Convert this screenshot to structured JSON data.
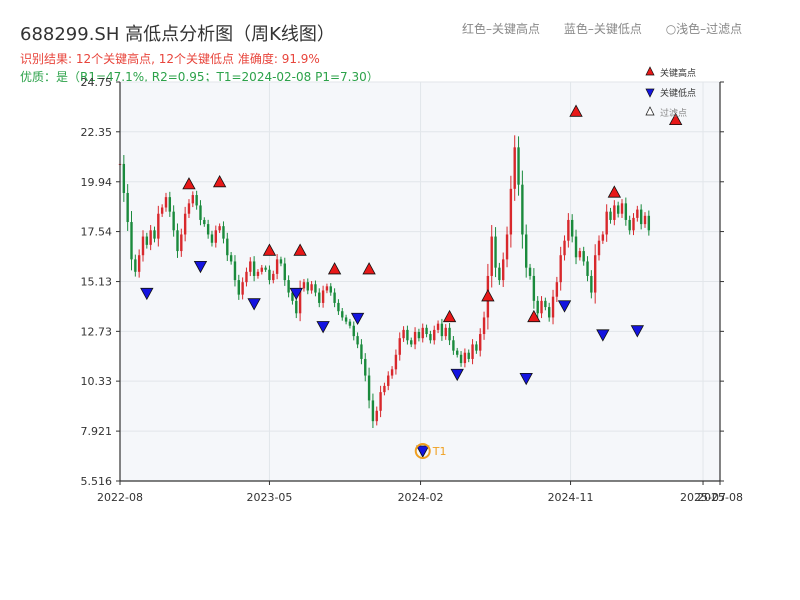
{
  "header": {
    "title": "688299.SH 高低点分析图（周K线图）",
    "result_line": "识别结果: 12个关键高点, 12个关键低点  准确度: 91.9%",
    "quality_line": "优质：是（R1=47.1%, R2=0.95；T1=2024-02-08 P1=7.30）",
    "legend_red": "红色–关键高点",
    "legend_blue": "蓝色–关键低点",
    "legend_gray": "○浅色–过滤点"
  },
  "colors": {
    "up": "#d8282c",
    "down": "#1a8a3c",
    "high_marker": "#e81818",
    "low_marker": "#1414e0",
    "t1": "#f0a020",
    "axis": "#333333",
    "plot_bg": "#f5f7fa",
    "grid": "#e2e6ea"
  },
  "chart_data": {
    "type": "candlestick",
    "xlabel": "",
    "ylabel": "",
    "y_ticks": [
      "5.516",
      "7.921",
      "10.33",
      "12.73",
      "15.13",
      "17.54",
      "19.94",
      "22.35",
      "24.75"
    ],
    "x_ticks": [
      {
        "label": "2022-08",
        "date": "2022-08-01"
      },
      {
        "label": "2023-05",
        "date": "2023-05-01"
      },
      {
        "label": "2024-02",
        "date": "2024-02-01"
      },
      {
        "label": "2024-11",
        "date": "2024-11-01"
      },
      {
        "label": "2025-07",
        "date": "2025-07-01"
      },
      {
        "label": "2025-08",
        "date": "2025-08-01"
      }
    ],
    "ylim": [
      5.516,
      24.75
    ],
    "xlim": [
      "2022-08-01",
      "2025-08-01"
    ],
    "grid": true,
    "legend": {
      "position": "top-right",
      "items": [
        {
          "label": "关键高点",
          "kind": "high"
        },
        {
          "label": "关键低点",
          "kind": "low"
        },
        {
          "label": "过滤点",
          "kind": "filtered"
        }
      ]
    },
    "start_date": "2022-08-01",
    "closes": [
      20.8,
      19.4,
      18.0,
      16.2,
      15.6,
      16.4,
      17.3,
      16.9,
      17.6,
      17.2,
      18.4,
      18.7,
      19.2,
      18.5,
      17.6,
      16.6,
      17.4,
      18.4,
      18.9,
      19.3,
      18.8,
      18.1,
      17.9,
      17.4,
      17.0,
      17.6,
      17.8,
      17.2,
      16.4,
      16.1,
      15.2,
      14.5,
      15.1,
      15.6,
      16.1,
      15.4,
      15.6,
      15.8,
      15.7,
      15.2,
      15.5,
      16.2,
      16.0,
      15.2,
      14.6,
      14.2,
      13.6,
      14.8,
      15.1,
      14.7,
      15.0,
      14.6,
      14.1,
      14.7,
      14.9,
      14.6,
      14.1,
      13.7,
      13.4,
      13.2,
      13.0,
      12.5,
      12.1,
      11.4,
      10.6,
      9.4,
      8.4,
      8.9,
      9.8,
      10.1,
      10.6,
      10.9,
      11.6,
      12.4,
      12.8,
      12.3,
      12.1,
      12.7,
      12.4,
      12.9,
      12.6,
      12.3,
      12.8,
      13.1,
      12.5,
      12.9,
      12.3,
      11.8,
      11.6,
      11.2,
      11.7,
      11.4,
      12.1,
      11.8,
      12.6,
      13.4,
      15.4,
      17.3,
      15.8,
      15.2,
      16.2,
      17.4,
      19.6,
      21.6,
      19.8,
      17.4,
      15.8,
      15.4,
      14.2,
      13.6,
      14.2,
      13.9,
      13.4,
      14.4,
      15.1,
      16.4,
      17.1,
      18.1,
      17.3,
      16.3,
      16.6,
      16.1,
      15.4,
      14.6,
      16.4,
      17.1,
      17.4,
      18.5,
      18.1,
      18.8,
      18.4,
      18.9,
      18.1,
      17.6,
      18.2,
      18.6,
      17.9,
      18.3,
      17.6
    ],
    "key_highs": [
      {
        "date": "2022-12-05",
        "value": 19.5
      },
      {
        "date": "2023-01-30",
        "value": 19.6
      },
      {
        "date": "2023-05-01",
        "value": 16.3
      },
      {
        "date": "2023-06-26",
        "value": 16.3
      },
      {
        "date": "2023-08-28",
        "value": 15.4
      },
      {
        "date": "2023-10-30",
        "value": 15.4
      },
      {
        "date": "2024-03-25",
        "value": 13.1
      },
      {
        "date": "2024-06-03",
        "value": 14.1
      },
      {
        "date": "2024-08-26",
        "value": 13.1
      },
      {
        "date": "2024-11-11",
        "value": 23.0
      },
      {
        "date": "2025-01-20",
        "value": 19.1
      },
      {
        "date": "2025-05-12",
        "value": 22.6
      }
    ],
    "key_lows": [
      {
        "date": "2022-09-19",
        "value": 14.9
      },
      {
        "date": "2022-12-26",
        "value": 16.2
      },
      {
        "date": "2023-04-03",
        "value": 14.4
      },
      {
        "date": "2023-06-19",
        "value": 14.9
      },
      {
        "date": "2023-08-07",
        "value": 13.3
      },
      {
        "date": "2023-10-09",
        "value": 13.7
      },
      {
        "date": "2024-02-05",
        "value": 7.3
      },
      {
        "date": "2024-04-08",
        "value": 11.0
      },
      {
        "date": "2024-08-12",
        "value": 10.8
      },
      {
        "date": "2024-10-21",
        "value": 14.3
      },
      {
        "date": "2024-12-30",
        "value": 12.9
      },
      {
        "date": "2025-03-03",
        "value": 13.1
      }
    ],
    "t1": {
      "date": "2024-02-05",
      "value": 7.3,
      "label": "T1"
    }
  }
}
